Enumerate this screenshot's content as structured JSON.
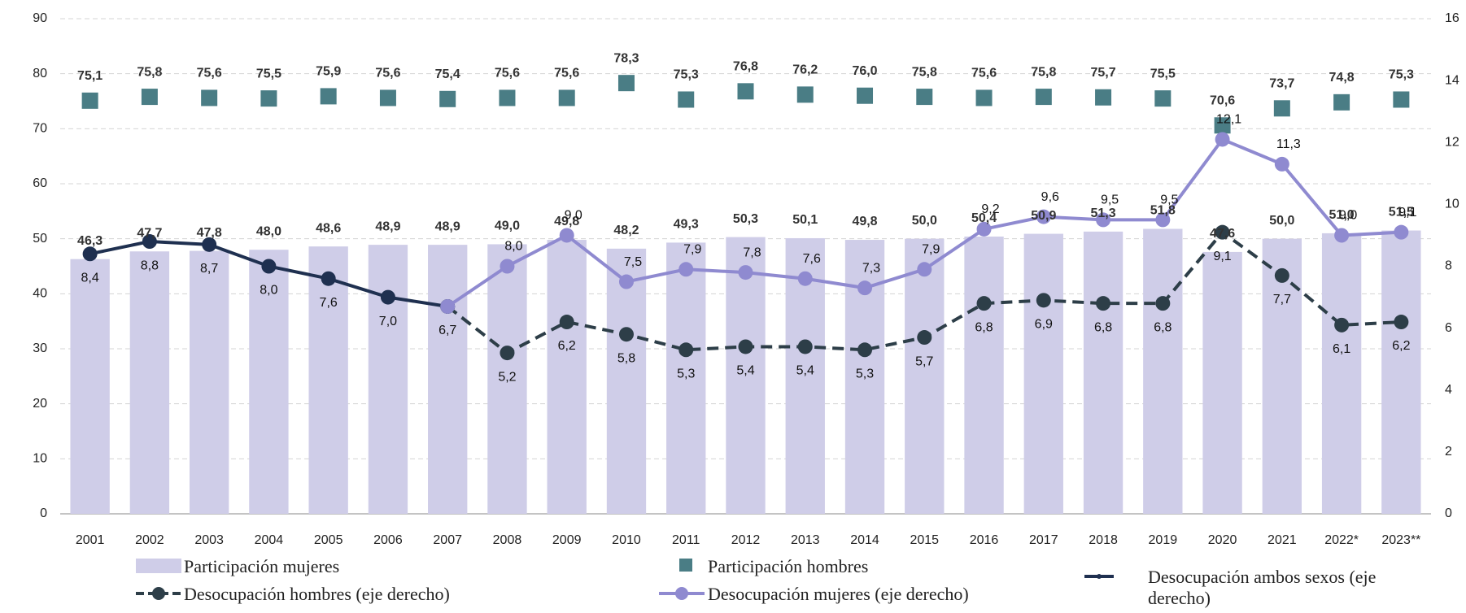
{
  "chart_data": {
    "type": "combo",
    "categories": [
      "2001",
      "2002",
      "2003",
      "2004",
      "2005",
      "2006",
      "2007",
      "2008",
      "2009",
      "2010",
      "2011",
      "2012",
      "2013",
      "2014",
      "2015",
      "2016",
      "2017",
      "2018",
      "2019",
      "2020",
      "2021",
      "2022*",
      "2023**"
    ],
    "ylim": [
      0,
      90
    ],
    "yticks": [
      0,
      10,
      20,
      30,
      40,
      50,
      60,
      70,
      80,
      90
    ],
    "y2lim": [
      0,
      16
    ],
    "y2ticks": [
      0,
      2,
      4,
      6,
      8,
      10,
      12,
      14,
      16
    ],
    "grid": true,
    "series": [
      {
        "name": "Participación mujeres",
        "mark": "bar",
        "color": "#cfcde8",
        "values": [
          46.3,
          47.7,
          47.8,
          48.0,
          48.6,
          48.9,
          48.9,
          49.0,
          49.8,
          48.2,
          49.3,
          50.3,
          50.1,
          49.8,
          50.0,
          50.4,
          50.9,
          51.3,
          51.8,
          47.6,
          50.0,
          51.0,
          51.5
        ],
        "value_labels": [
          "46,3",
          "47,7",
          "47,8",
          "48,0",
          "48,6",
          "48,9",
          "48,9",
          "49,0",
          "49,8",
          "48,2",
          "49,3",
          "50,3",
          "50,1",
          "49,8",
          "50,0",
          "50,4",
          "50,9",
          "51,3",
          "51,8",
          "47,6",
          "50,0",
          "51,0",
          "51,5"
        ]
      },
      {
        "name": "Participación hombres",
        "mark": "square",
        "color": "#4a7d85",
        "values": [
          75.1,
          75.8,
          75.6,
          75.5,
          75.9,
          75.6,
          75.4,
          75.6,
          75.6,
          78.3,
          75.3,
          76.8,
          76.2,
          76.0,
          75.8,
          75.6,
          75.8,
          75.7,
          75.5,
          70.6,
          73.7,
          74.8,
          75.3
        ],
        "value_labels": [
          "75,1",
          "75,8",
          "75,6",
          "75,5",
          "75,9",
          "75,6",
          "75,4",
          "75,6",
          "75,6",
          "78,3",
          "75,3",
          "76,8",
          "76,2",
          "76,0",
          "75,8",
          "75,6",
          "75,8",
          "75,7",
          "75,5",
          "70,6",
          "73,7",
          "74,8",
          "75,3"
        ]
      },
      {
        "name": "Desocupación ambos sexos (eje derecho)",
        "mark": "line",
        "axis": "y2",
        "color": "#1f3050",
        "dashed": false,
        "values": [
          8.4,
          8.8,
          8.7,
          8.0,
          7.6,
          7.0,
          6.7,
          null,
          null,
          null,
          null,
          null,
          null,
          null,
          null,
          null,
          null,
          null,
          null,
          null,
          null,
          null,
          null
        ],
        "value_labels": [
          "8,4",
          "8,8",
          "8,7",
          "8,0",
          "7,6",
          "7,0",
          "6,7",
          null,
          null,
          null,
          null,
          null,
          null,
          null,
          null,
          null,
          null,
          null,
          null,
          null,
          null,
          null,
          null
        ]
      },
      {
        "name": "Desocupación hombres (eje derecho)",
        "mark": "line",
        "axis": "y2",
        "color": "#2d3e48",
        "dashed": true,
        "values": [
          null,
          null,
          null,
          null,
          null,
          null,
          6.7,
          5.2,
          6.2,
          5.8,
          5.3,
          5.4,
          5.4,
          5.3,
          5.7,
          6.8,
          6.9,
          6.8,
          6.8,
          9.1,
          7.7,
          6.1,
          6.2
        ],
        "value_labels": [
          null,
          null,
          null,
          null,
          null,
          null,
          null,
          "5,2",
          "6,2",
          "5,8",
          "5,3",
          "5,4",
          "5,4",
          "5,3",
          "5,7",
          "6,8",
          "6,9",
          "6,8",
          "6,8",
          "9,1",
          "7,7",
          "6,1",
          "6,2"
        ]
      },
      {
        "name": "Desocupación mujeres (eje derecho)",
        "mark": "line",
        "axis": "y2",
        "color": "#8f8ad0",
        "dashed": false,
        "values": [
          null,
          null,
          null,
          null,
          null,
          null,
          6.7,
          8.0,
          9.0,
          7.5,
          7.9,
          7.8,
          7.6,
          7.3,
          7.9,
          9.2,
          9.6,
          9.5,
          9.5,
          12.1,
          11.3,
          9.0,
          9.1
        ],
        "value_labels": [
          null,
          null,
          null,
          null,
          null,
          null,
          null,
          "8,0",
          "9,0",
          "7,5",
          "7,9",
          "7,8",
          "7,6",
          "7,3",
          "7,9",
          "9,2",
          "9,6",
          "9,5",
          "9,5",
          "12,1",
          "11,3",
          "9,0",
          "9,1"
        ]
      }
    ]
  }
}
